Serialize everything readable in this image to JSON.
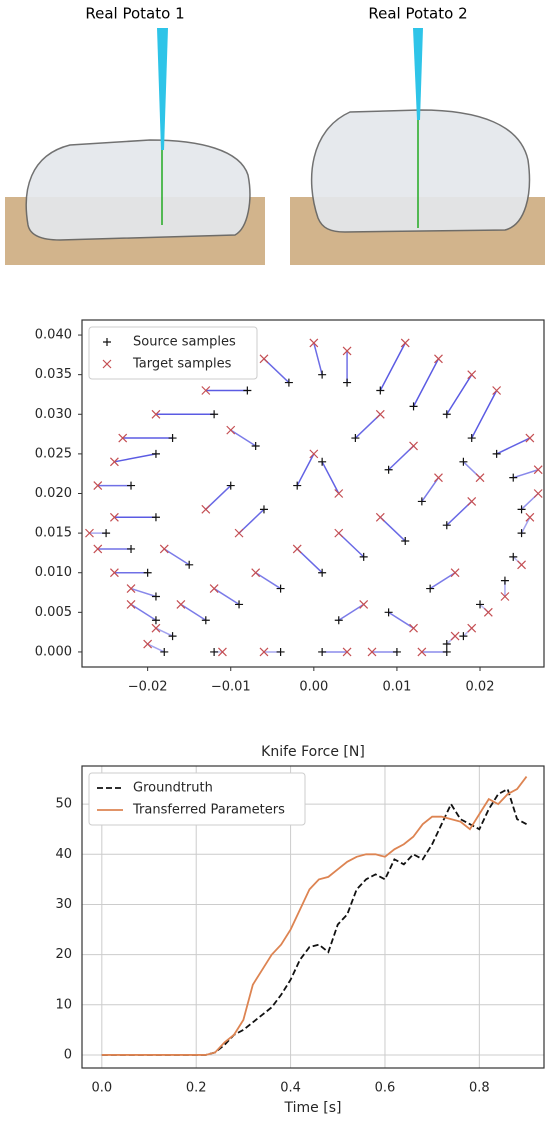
{
  "images": [
    {
      "title": "Real Potato 1"
    },
    {
      "title": "Real Potato 2"
    }
  ],
  "chart_data": [
    {
      "type": "scatter",
      "legend": "upper left",
      "grid": false,
      "link_color": "#4a4ae0",
      "xlim": [
        -0.0279,
        0.0277
      ],
      "ylim": [
        -0.0019,
        0.0419
      ],
      "xticks": [
        {
          "value": -0.02,
          "label": "−0.02"
        },
        {
          "value": -0.01,
          "label": "−0.01"
        },
        {
          "value": 0,
          "label": "0.00"
        },
        {
          "value": 0.01,
          "label": "0.01"
        },
        {
          "value": 0.02,
          "label": "0.02"
        }
      ],
      "yticks": [
        {
          "value": 0,
          "label": "0.000"
        },
        {
          "value": 0.005,
          "label": "0.005"
        },
        {
          "value": 0.01,
          "label": "0.010"
        },
        {
          "value": 0.015,
          "label": "0.015"
        },
        {
          "value": 0.02,
          "label": "0.020"
        },
        {
          "value": 0.025,
          "label": "0.025"
        },
        {
          "value": 0.03,
          "label": "0.030"
        },
        {
          "value": 0.035,
          "label": "0.035"
        },
        {
          "value": 0.04,
          "label": "0.040"
        }
      ],
      "series": [
        {
          "name": "Source samples",
          "marker": "+",
          "color": "#111111",
          "x": [
            -0.025,
            -0.022,
            -0.02,
            -0.019,
            -0.019,
            -0.017,
            -0.018,
            -0.012,
            -0.004,
            0.001,
            0.01,
            0.016,
            -0.019,
            -0.022,
            -0.019,
            -0.017,
            -0.012,
            -0.008,
            -0.003,
            0.001,
            0.004,
            0.008,
            0.012,
            0.016,
            0.019,
            0.022,
            0.024,
            0.025,
            0.025,
            0.024,
            0.023,
            0.02,
            0.018,
            0.016,
            -0.01,
            -0.006,
            -0.002,
            0.001,
            0.005,
            0.009,
            0.013,
            0.016,
            0.011,
            0.006,
            0.001,
            -0.004,
            -0.009,
            -0.013,
            0.003,
            0.009,
            0.014,
            -0.015,
            -0.007,
            0.018
          ],
          "y": [
            0.015,
            0.013,
            0.01,
            0.007,
            0.004,
            0.002,
            0.0,
            0.0,
            0.0,
            0.0,
            0.0,
            0.0,
            0.017,
            0.021,
            0.025,
            0.027,
            0.03,
            0.033,
            0.034,
            0.035,
            0.034,
            0.033,
            0.031,
            0.03,
            0.027,
            0.025,
            0.022,
            0.018,
            0.015,
            0.012,
            0.009,
            0.006,
            0.002,
            0.001,
            0.021,
            0.018,
            0.021,
            0.024,
            0.027,
            0.023,
            0.019,
            0.016,
            0.014,
            0.012,
            0.01,
            0.008,
            0.006,
            0.004,
            0.004,
            0.005,
            0.008,
            0.011,
            0.026,
            0.024
          ]
        },
        {
          "name": "Target samples",
          "marker": "x",
          "color": "#c44e52",
          "x": [
            -0.027,
            -0.026,
            -0.024,
            -0.022,
            -0.022,
            -0.019,
            -0.02,
            -0.011,
            -0.006,
            0.004,
            0.007,
            0.013,
            -0.024,
            -0.026,
            -0.024,
            -0.023,
            -0.019,
            -0.013,
            -0.006,
            0.0,
            0.004,
            0.011,
            0.015,
            0.019,
            0.022,
            0.026,
            0.027,
            0.027,
            0.026,
            0.025,
            0.023,
            0.021,
            0.019,
            0.017,
            -0.013,
            -0.009,
            0.0,
            0.003,
            0.008,
            0.012,
            0.015,
            0.019,
            0.008,
            0.003,
            -0.002,
            -0.007,
            -0.012,
            -0.016,
            0.006,
            0.012,
            0.017,
            -0.018,
            -0.01,
            0.02
          ],
          "y": [
            0.015,
            0.013,
            0.01,
            0.008,
            0.006,
            0.003,
            0.001,
            0.0,
            0.0,
            0.0,
            0.0,
            0.0,
            0.017,
            0.021,
            0.024,
            0.027,
            0.03,
            0.033,
            0.037,
            0.039,
            0.038,
            0.039,
            0.037,
            0.035,
            0.033,
            0.027,
            0.023,
            0.02,
            0.017,
            0.011,
            0.007,
            0.005,
            0.003,
            0.002,
            0.018,
            0.015,
            0.025,
            0.02,
            0.03,
            0.026,
            0.022,
            0.019,
            0.017,
            0.015,
            0.013,
            0.01,
            0.008,
            0.006,
            0.006,
            0.003,
            0.01,
            0.013,
            0.028,
            0.022
          ]
        }
      ]
    },
    {
      "type": "line",
      "title": "Knife Force [N]",
      "xlabel": "Time [s]",
      "legend": "upper left",
      "grid": true,
      "xlim": [
        -0.042,
        0.937
      ],
      "ylim": [
        -2.6,
        57.6
      ],
      "xticks": [
        {
          "value": 0,
          "label": "0.0"
        },
        0.2,
        0.4,
        0.6,
        0.8
      ],
      "yticks": [
        0,
        10,
        20,
        30,
        40,
        50
      ],
      "x": [
        0,
        0.02,
        0.04,
        0.06,
        0.08,
        0.1,
        0.12,
        0.14,
        0.16,
        0.18,
        0.2,
        0.22,
        0.24,
        0.26,
        0.28,
        0.3,
        0.32,
        0.34,
        0.36,
        0.38,
        0.4,
        0.42,
        0.44,
        0.46,
        0.48,
        0.5,
        0.52,
        0.54,
        0.56,
        0.58,
        0.6,
        0.62,
        0.64,
        0.66,
        0.68,
        0.7,
        0.72,
        0.74,
        0.76,
        0.78,
        0.8,
        0.82,
        0.84,
        0.86,
        0.88,
        0.9
      ],
      "series": [
        {
          "name": "Groundtruth",
          "color": "#111111",
          "dash": true,
          "values": [
            0,
            0,
            0,
            0,
            0,
            0,
            0,
            0,
            0,
            0,
            0,
            0,
            0.5,
            2,
            4,
            5,
            6.5,
            8,
            9.5,
            12,
            15,
            19,
            21.5,
            22,
            20.5,
            26,
            28,
            33,
            35,
            36,
            35,
            39,
            38,
            40,
            39,
            42,
            46,
            50,
            47,
            46,
            45,
            49,
            52,
            53,
            47,
            46
          ]
        },
        {
          "name": "Transferred Parameters",
          "color": "#dd8452",
          "dash": false,
          "values": [
            0,
            0,
            0,
            0,
            0,
            0,
            0,
            0,
            0,
            0,
            0,
            0,
            0.5,
            2.5,
            4,
            7,
            14,
            17,
            20,
            22,
            25,
            29,
            33,
            35,
            35.5,
            37,
            38.5,
            39.5,
            40,
            40,
            39.5,
            41,
            42,
            43.5,
            46,
            47.5,
            47.5,
            47,
            46.5,
            45,
            48,
            51,
            50,
            52,
            53,
            55.5
          ]
        }
      ]
    }
  ]
}
